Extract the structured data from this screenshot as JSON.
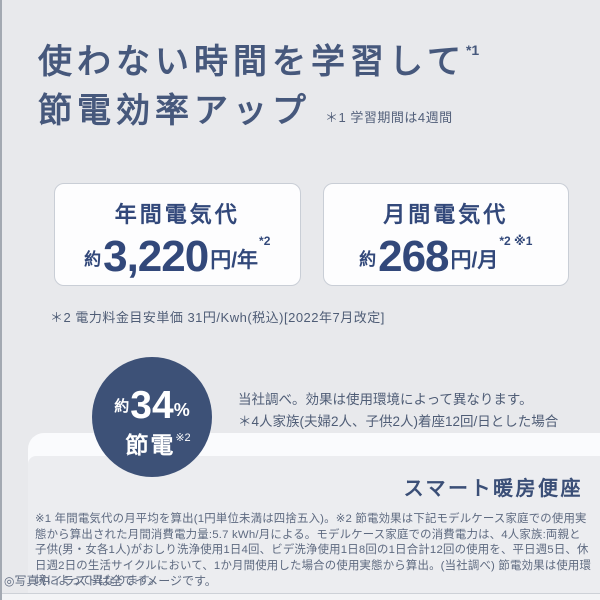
{
  "header": {
    "title_line1": "使わない時間を学習して",
    "title_line1_sup": "*1",
    "title_line2": "節電効率アップ",
    "title_note": "＊1 学習期間は4週間"
  },
  "cards": {
    "annual": {
      "label": "年間電気代",
      "approx": "約",
      "value": "3,220",
      "unit": "円/年",
      "sup": "*2"
    },
    "monthly": {
      "label": "月間電気代",
      "approx": "約",
      "value": "268",
      "unit": "円/月",
      "sup": "*2 ※1"
    }
  },
  "unit_note": "＊2 電力料金目安単価 31円/Kwh(税込)[2022年7月改定]",
  "savings": {
    "circle": {
      "approx": "約",
      "value": "34",
      "percent": "%",
      "label": "節電",
      "sup": "※2"
    },
    "note_line1": "当社調べ。効果は使用環境によって異なります。",
    "note_line2": "＊4人家族(夫婦2人、子供2人)着座12回/日とした場合"
  },
  "product_name": "スマート暖房便座",
  "footnotes": {
    "body": "※1 年間電気代の月平均を算出(1円単位未満は四捨五入)。※2 節電効果は下記モデルケース家庭での使用実態から算出された月間消費電力量:5.7 kWh/月による。モデルケース家庭での消費電力は、4人家族:両親と子供(男・女各1人)がおしり洗浄使用1日4回、ビデ洗浄使用1日8回の1日合計12回の使用を、平日週5日、休日週2日の生活サイクルにおいて、1か月間使用した場合の使用実態から算出。(当社調べ) 節電効果は使用環境によって異なります。",
    "image_note": "◎写真やイラストは全てイメージです。"
  },
  "colors": {
    "title_navy": "#46587c",
    "value_navy": "#32487a",
    "circle_navy": "#3d5177",
    "bg_top": "#e8e9ec",
    "bg_bottom": "#ecedf0",
    "card_border": "#c9ced6"
  }
}
